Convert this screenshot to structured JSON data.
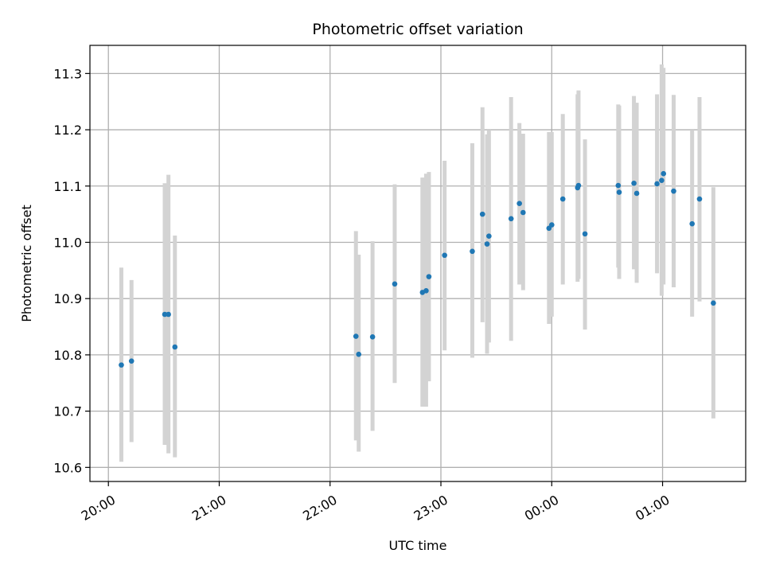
{
  "chart_data": {
    "type": "scatter",
    "title": "Photometric offset variation",
    "xlabel": "UTC time",
    "ylabel": "Photometric offset",
    "xlim_minutes": [
      -10,
      345
    ],
    "ylim": [
      10.575,
      11.35
    ],
    "x_ticks": [
      {
        "minute": 0,
        "label": "20:00"
      },
      {
        "minute": 60,
        "label": "21:00"
      },
      {
        "minute": 120,
        "label": "22:00"
      },
      {
        "minute": 180,
        "label": "23:00"
      },
      {
        "minute": 240,
        "label": "00:00"
      },
      {
        "minute": 300,
        "label": "01:00"
      }
    ],
    "y_ticks": [
      {
        "value": 10.6,
        "label": "10.6"
      },
      {
        "value": 10.7,
        "label": "10.7"
      },
      {
        "value": 10.8,
        "label": "10.8"
      },
      {
        "value": 10.9,
        "label": "10.9"
      },
      {
        "value": 11.0,
        "label": "11.0"
      },
      {
        "value": 11.1,
        "label": "11.1"
      },
      {
        "value": 11.2,
        "label": "11.2"
      },
      {
        "value": 11.3,
        "label": "11.3"
      }
    ],
    "grid": true,
    "marker_color": "#1f77b4",
    "errorbar_color": "#d3d3d3",
    "points": [
      {
        "t": 7,
        "y": 10.782,
        "lo": 10.61,
        "hi": 10.955
      },
      {
        "t": 12.5,
        "y": 10.789,
        "lo": 10.645,
        "hi": 10.933
      },
      {
        "t": 30.5,
        "y": 10.872,
        "lo": 10.64,
        "hi": 11.105
      },
      {
        "t": 32.5,
        "y": 10.872,
        "lo": 10.625,
        "hi": 11.12
      },
      {
        "t": 36,
        "y": 10.814,
        "lo": 10.618,
        "hi": 11.012
      },
      {
        "t": 134,
        "y": 10.833,
        "lo": 10.648,
        "hi": 11.02
      },
      {
        "t": 135.5,
        "y": 10.801,
        "lo": 10.628,
        "hi": 10.978
      },
      {
        "t": 143,
        "y": 10.832,
        "lo": 10.665,
        "hi": 11.002
      },
      {
        "t": 155,
        "y": 10.926,
        "lo": 10.75,
        "hi": 11.103
      },
      {
        "t": 170,
        "y": 10.911,
        "lo": 10.708,
        "hi": 11.115
      },
      {
        "t": 172,
        "y": 10.914,
        "lo": 10.708,
        "hi": 11.122
      },
      {
        "t": 173.5,
        "y": 10.939,
        "lo": 10.753,
        "hi": 11.125
      },
      {
        "t": 182,
        "y": 10.977,
        "lo": 10.808,
        "hi": 11.145
      },
      {
        "t": 197,
        "y": 10.984,
        "lo": 10.795,
        "hi": 11.176
      },
      {
        "t": 202.5,
        "y": 11.05,
        "lo": 10.858,
        "hi": 11.24
      },
      {
        "t": 205,
        "y": 10.997,
        "lo": 10.802,
        "hi": 11.192
      },
      {
        "t": 206,
        "y": 11.011,
        "lo": 10.822,
        "hi": 11.2
      },
      {
        "t": 218,
        "y": 11.042,
        "lo": 10.825,
        "hi": 11.258
      },
      {
        "t": 222.5,
        "y": 11.069,
        "lo": 10.925,
        "hi": 11.212
      },
      {
        "t": 224.5,
        "y": 11.053,
        "lo": 10.915,
        "hi": 11.193
      },
      {
        "t": 238.5,
        "y": 11.025,
        "lo": 10.855,
        "hi": 11.196
      },
      {
        "t": 240,
        "y": 11.031,
        "lo": 10.868,
        "hi": 11.196
      },
      {
        "t": 246,
        "y": 11.077,
        "lo": 10.925,
        "hi": 11.228
      },
      {
        "t": 254,
        "y": 11.097,
        "lo": 10.93,
        "hi": 11.263
      },
      {
        "t": 254.5,
        "y": 11.101,
        "lo": 10.935,
        "hi": 11.27
      },
      {
        "t": 258,
        "y": 11.015,
        "lo": 10.845,
        "hi": 11.183
      },
      {
        "t": 276,
        "y": 11.101,
        "lo": 10.955,
        "hi": 11.245
      },
      {
        "t": 276.5,
        "y": 11.089,
        "lo": 10.935,
        "hi": 11.243
      },
      {
        "t": 284.5,
        "y": 11.105,
        "lo": 10.952,
        "hi": 11.26
      },
      {
        "t": 286,
        "y": 11.087,
        "lo": 10.928,
        "hi": 11.248
      },
      {
        "t": 297,
        "y": 11.104,
        "lo": 10.945,
        "hi": 11.263
      },
      {
        "t": 299.5,
        "y": 11.11,
        "lo": 10.905,
        "hi": 11.316
      },
      {
        "t": 300.5,
        "y": 11.122,
        "lo": 10.925,
        "hi": 11.31
      },
      {
        "t": 306,
        "y": 11.091,
        "lo": 10.92,
        "hi": 11.262
      },
      {
        "t": 316,
        "y": 11.033,
        "lo": 10.868,
        "hi": 11.2
      },
      {
        "t": 320,
        "y": 11.077,
        "lo": 10.895,
        "hi": 11.258
      },
      {
        "t": 327.5,
        "y": 10.892,
        "lo": 10.687,
        "hi": 11.098
      }
    ]
  }
}
